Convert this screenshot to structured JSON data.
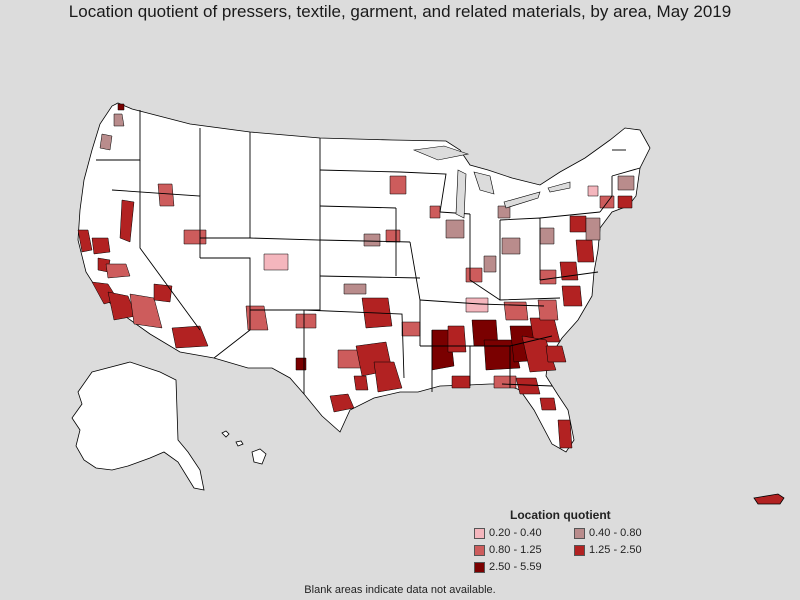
{
  "title": "Location quotient of pressers, textile, garment, and related materials, by area, May 2019",
  "legend": {
    "title": "Location quotient",
    "items": [
      {
        "label": "0.20 - 0.40",
        "color": "#f4b6bd"
      },
      {
        "label": "0.40 - 0.80",
        "color": "#b98c8c"
      },
      {
        "label": "0.80 - 1.25",
        "color": "#cd5c5c"
      },
      {
        "label": "1.25 - 2.50",
        "color": "#b22222"
      },
      {
        "label": "2.50 - 5.59",
        "color": "#7a0000"
      }
    ]
  },
  "footnote": "Blank areas indicate data not available.",
  "colors": {
    "background": "#dcdcdc",
    "land": "#ffffff",
    "border": "#000000"
  }
}
